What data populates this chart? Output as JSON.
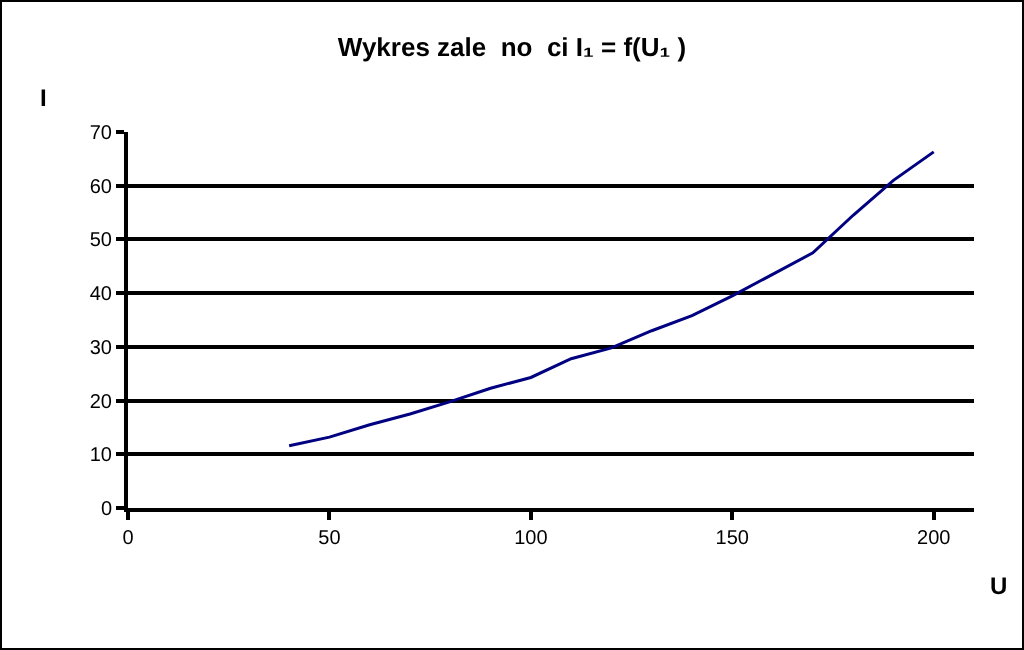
{
  "chart_data": {
    "type": "line",
    "title": "Wykres zale  no  ci I₁ = f(U₁ )",
    "xlabel": "U",
    "ylabel": "I",
    "x": [
      40,
      50,
      60,
      70,
      80,
      90,
      100,
      110,
      120,
      130,
      140,
      150,
      160,
      170,
      180,
      190,
      200
    ],
    "series": [
      {
        "color": "#000080",
        "values": [
          11.6,
          13.2,
          15.5,
          17.5,
          19.8,
          22.3,
          24.3,
          27.8,
          29.8,
          33,
          35.8,
          39.5,
          43.5,
          47.5,
          54.5,
          61,
          66.3
        ]
      }
    ],
    "xlim": [
      0,
      210
    ],
    "xticks": [
      0,
      50,
      100,
      150,
      200
    ],
    "ylim": [
      0,
      70
    ],
    "yticks": [
      0,
      10,
      20,
      30,
      40,
      50,
      60,
      70
    ],
    "grid": "y",
    "marker": "none",
    "line_style": "solid"
  }
}
